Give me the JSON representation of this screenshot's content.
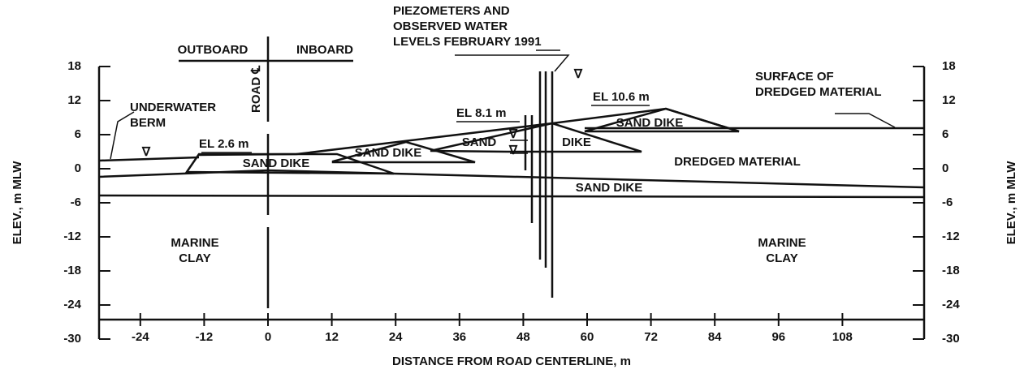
{
  "title_labels": {
    "outboard": "OUTBOARD",
    "inboard": "INBOARD",
    "road": "ROAD ℄",
    "piezometers": [
      "PIEZOMETERS AND",
      "OBSERVED WATER",
      "LEVELS FEBRUARY 1991"
    ],
    "surface": [
      "SURFACE OF",
      "DREDGED MATERIAL"
    ],
    "berm": [
      "UNDERWATER",
      "BERM"
    ]
  },
  "labels": {
    "el26": "EL 2.6 m",
    "el81": "EL 8.1 m",
    "el106": "EL 10.6 m",
    "sand_dike_1": "SAND  DIKE",
    "sand_dike_2": "SAND DIKE",
    "sand": "SAND",
    "dike": "DIKE",
    "sand_dike_4": "SAND DIKE",
    "dredged": "DREDGED MATERIAL",
    "sand_dike_low": "SAND DIKE",
    "marine_left": [
      "MARINE",
      "CLAY"
    ],
    "marine_right": [
      "MARINE",
      "CLAY"
    ]
  },
  "axes": {
    "y_label": "ELEV., m MLW",
    "y2_label": "ELEV., m MLW",
    "x_label": "DISTANCE FROM ROAD CENTERLINE, m",
    "xticks": [
      -24,
      -12,
      0,
      12,
      24,
      36,
      48,
      60,
      72,
      84,
      96,
      108
    ],
    "yticks": [
      18,
      12,
      6,
      0,
      -6,
      -12,
      -18,
      -24,
      -30
    ]
  }
}
